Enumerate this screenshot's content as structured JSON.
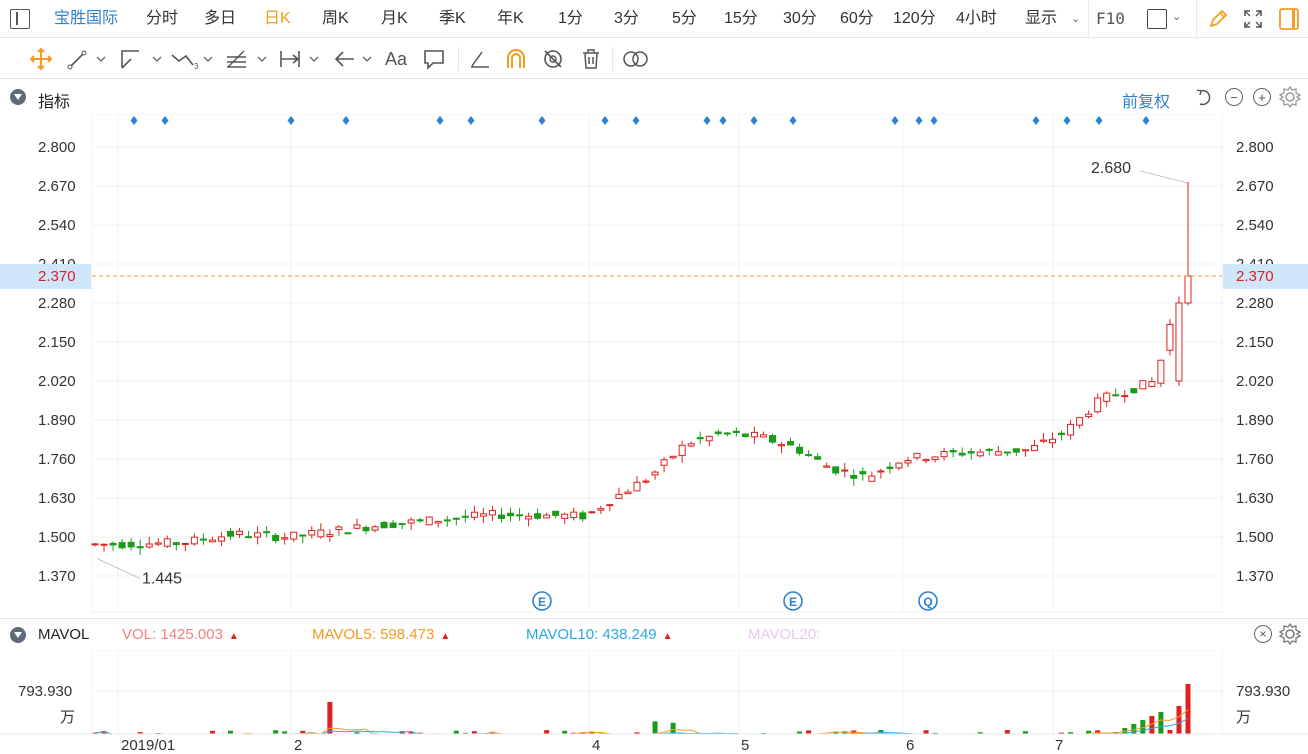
{
  "toolbar": {
    "stock_name": "宝胜国际",
    "periods": [
      "分时",
      "多日",
      "日K",
      "周K",
      "月K",
      "季K",
      "年K",
      "1分",
      "3分",
      "5分",
      "15分",
      "30分",
      "60分",
      "120分",
      "4小时"
    ],
    "active_period": "日K",
    "display_label": "显示",
    "f10_label": "F10"
  },
  "drawing_tools": [
    "crosshair-icon",
    "line-segment-icon",
    "channel-icon",
    "wave-icon",
    "fibonacci-icon",
    "measure-icon",
    "arrow-icon",
    "text-icon",
    "note-icon",
    "pen-icon",
    "magnet-icon",
    "hide-drawings-icon",
    "delete-drawings-icon",
    "compare-icon"
  ],
  "drawing_text_label": "Aa",
  "indicator": {
    "label": "指标",
    "fuquan_label": "前复权"
  },
  "main_chart": {
    "y_ticks": [
      "2.800",
      "2.670",
      "2.540",
      "2.410",
      "2.280",
      "2.150",
      "2.020",
      "1.890",
      "1.760",
      "1.630",
      "1.500",
      "1.370"
    ],
    "last_price": "2.370",
    "high_label": "2.680",
    "low_label": "1.445",
    "event_markers": [
      "E",
      "E",
      "Q"
    ],
    "colors": {
      "up": "#e02020",
      "down": "#1a9b1a",
      "last_price_line": "#f59a23",
      "marker": "#2f80d1"
    }
  },
  "volume": {
    "label": "MAVOL",
    "vol_text": "VOL: 1425.003",
    "mavol5_text": "MAVOL5: 598.473",
    "mavol10_text": "MAVOL10: 438.249",
    "mavol20_text": "MAVOL20:",
    "y_tick": "793.930",
    "y_unit": "万",
    "colors": {
      "vol": "#f08080",
      "mavol5": "#f59a23",
      "mavol10": "#29a8e0",
      "mavol20": "#e8c8f0"
    }
  },
  "x_axis_labels": [
    "2019/01",
    "2",
    "4",
    "5",
    "6",
    "7"
  ]
}
